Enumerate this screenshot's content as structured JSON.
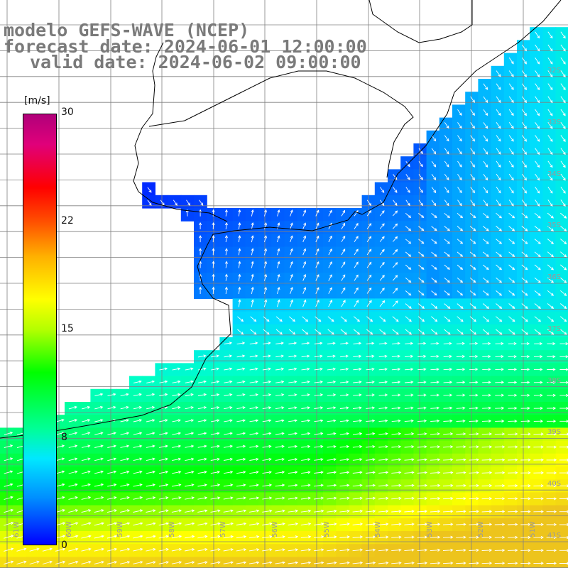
{
  "title": {
    "line1": "modelo GEFS-WAVE (NCEP)",
    "line2": "forecast date: 2024-06-01 12:00:00",
    "line3": "valid date: 2024-06-02 09:00:00"
  },
  "colorbar": {
    "unit": "[m/s]",
    "ticks": [
      "30",
      "22",
      "15",
      "8",
      "0"
    ],
    "colors": [
      "#0000ff",
      "#0090ff",
      "#00e8ff",
      "#00ff96",
      "#00ff00",
      "#b4ff00",
      "#ffff00",
      "#ffb000",
      "#ff5000",
      "#ff0000",
      "#b0007a"
    ]
  },
  "map": {
    "lon_labels": [
      "61W",
      "60W",
      "59W",
      "58W",
      "57W",
      "56W",
      "55W",
      "54W",
      "53W",
      "52W",
      "51W"
    ],
    "lat_labels": [
      "32S",
      "33S",
      "34S",
      "35S",
      "36S",
      "37S",
      "38S",
      "39S",
      "40S",
      "41S"
    ],
    "variable": "wind speed and direction",
    "land_color": "#ffffff",
    "grid_color": "#808080"
  }
}
